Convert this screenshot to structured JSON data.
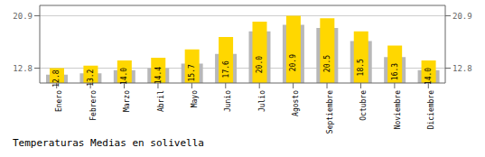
{
  "chart_data": {
    "type": "bar",
    "title": "Temperaturas Medias en solivella",
    "categories": [
      "Enero",
      "Febrero",
      "Marzo",
      "Abril",
      "Mayo",
      "Junio",
      "Julio",
      "Agosto",
      "Septiembre",
      "Octubre",
      "Noviembre",
      "Diciembre"
    ],
    "series": [
      {
        "color": "#B8B8B8",
        "values": [
          11.8,
          12.0,
          12.5,
          12.8,
          13.5,
          15.0,
          18.5,
          19.5,
          19.0,
          17.0,
          14.5,
          12.5
        ]
      },
      {
        "color": "#FFD700",
        "values": [
          12.8,
          13.2,
          14.0,
          14.4,
          15.7,
          17.6,
          20.0,
          20.9,
          20.5,
          18.5,
          16.3,
          14.0
        ],
        "data_labels": true,
        "value_labels": [
          "12.8",
          "13.2",
          "14.0",
          "14.4",
          "15.7",
          "17.6",
          "20.0",
          "20.9",
          "20.5",
          "18.5",
          "16.3",
          "14.0"
        ]
      }
    ],
    "ylim": [
      10.5,
      22.5
    ],
    "yticks": [
      12.8,
      20.9
    ],
    "y2lim": [
      10.5,
      22.5
    ],
    "y2ticks": [
      12.8,
      20.9
    ],
    "grid": true
  }
}
